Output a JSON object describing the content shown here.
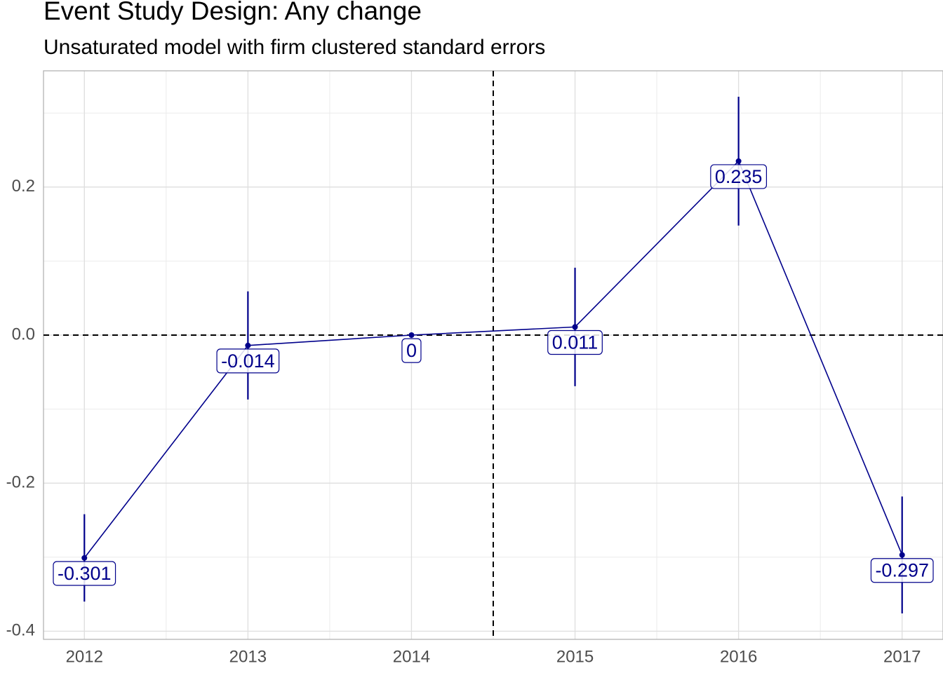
{
  "chart_data": {
    "type": "line",
    "title": "Event Study Design: Any change",
    "subtitle": "Unsaturated model with firm clustered standard errors",
    "x": [
      2012,
      2013,
      2014,
      2015,
      2016,
      2017
    ],
    "series": [
      {
        "color": "#00008b",
        "values": [
          -0.301,
          -0.014,
          0,
          0.011,
          0.235,
          -0.297
        ],
        "errors": [
          0.059,
          0.073,
          0,
          0.08,
          0.087,
          0.079
        ]
      }
    ],
    "xlim": [
      2011.75,
      2017.25
    ],
    "xticks": [
      2012,
      2013,
      2014,
      2015,
      2016,
      2017
    ],
    "x_minor_ticks": [
      2012.5,
      2013.5,
      2014.5,
      2015.5,
      2016.5
    ],
    "ylim": [
      -0.411,
      0.357
    ],
    "yticks": [
      -0.4,
      -0.2,
      {
        "value": 0,
        "label": "0.0"
      },
      0.2
    ],
    "y_minor_ticks": [
      -0.3,
      -0.1,
      0.1,
      0.3
    ],
    "vlines": [
      2014.5
    ],
    "hlines": [
      0
    ],
    "grid": true
  }
}
